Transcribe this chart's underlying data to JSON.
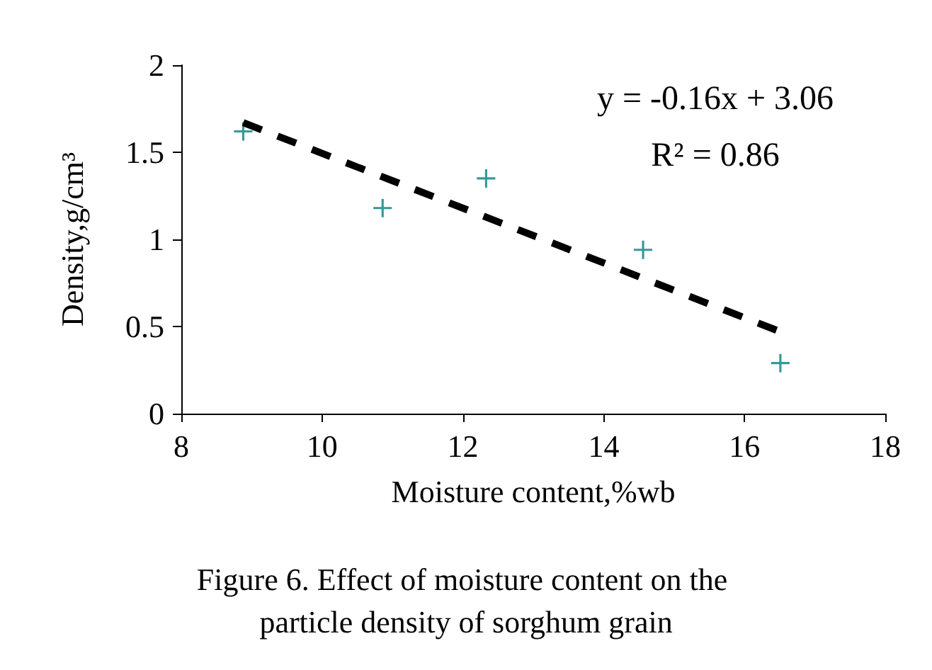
{
  "chart_data": {
    "type": "scatter",
    "title": "Figure 6. Effect of moisture content on the particle density of sorghum grain",
    "xlabel": "Moisture content,%wb",
    "ylabel": "Density,g/cm³",
    "annotations": [
      "y = -0.16x + 3.06",
      "R² = 0.86"
    ],
    "series": [
      {
        "color": "#008080",
        "marker": "cross",
        "x": [
          8.88,
          10.86,
          12.33,
          14.56,
          16.51
        ],
        "values": [
          1.62,
          1.18,
          1.35,
          0.94,
          0.29
        ]
      },
      {
        "type": "line",
        "color": "#000000",
        "marker": "none",
        "line_style": "dashed",
        "x": [
          8.88,
          16.51
        ],
        "values": [
          1.67,
          0.47
        ]
      }
    ],
    "xlim": [
      8,
      18
    ],
    "xticks": [
      8,
      10,
      12,
      14,
      16,
      18
    ],
    "ylim": [
      0,
      2
    ],
    "yticks": [
      0,
      0.5,
      1,
      1.5,
      2
    ],
    "grid": false
  }
}
